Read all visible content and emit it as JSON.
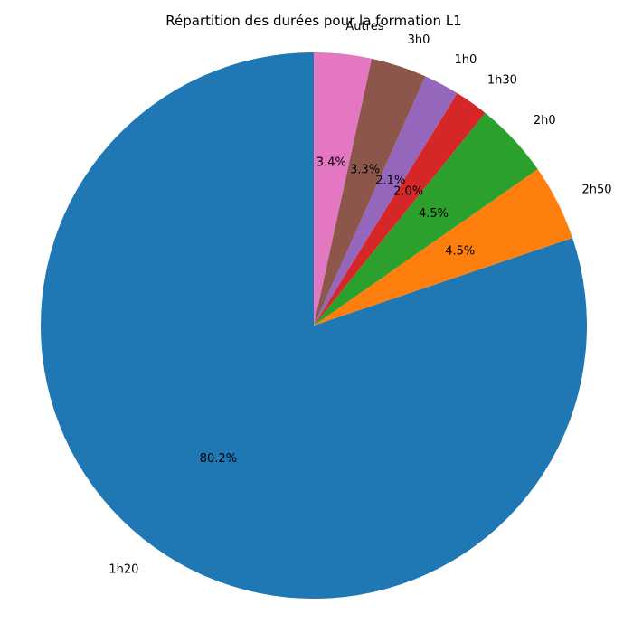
{
  "chart_data": {
    "type": "pie",
    "title": "Répartition des durées pour la formation L1",
    "start_angle_deg": 90,
    "direction": "counterclockwise",
    "slices": [
      {
        "label": "1h20",
        "value": 80.2,
        "pct_label": "80.2%",
        "color": "#1f77b4"
      },
      {
        "label": "2h50",
        "value": 4.5,
        "pct_label": "4.5%",
        "color": "#ff7f0e"
      },
      {
        "label": "2h0",
        "value": 4.5,
        "pct_label": "4.5%",
        "color": "#2ca02c"
      },
      {
        "label": "1h30",
        "value": 2.0,
        "pct_label": "2.0%",
        "color": "#d62728"
      },
      {
        "label": "1h0",
        "value": 2.1,
        "pct_label": "2.1%",
        "color": "#9467bd"
      },
      {
        "label": "3h0",
        "value": 3.3,
        "pct_label": "3.3%",
        "color": "#8c564b"
      },
      {
        "label": "Autres",
        "value": 3.4,
        "pct_label": "3.4%",
        "color": "#e377c2"
      }
    ]
  }
}
